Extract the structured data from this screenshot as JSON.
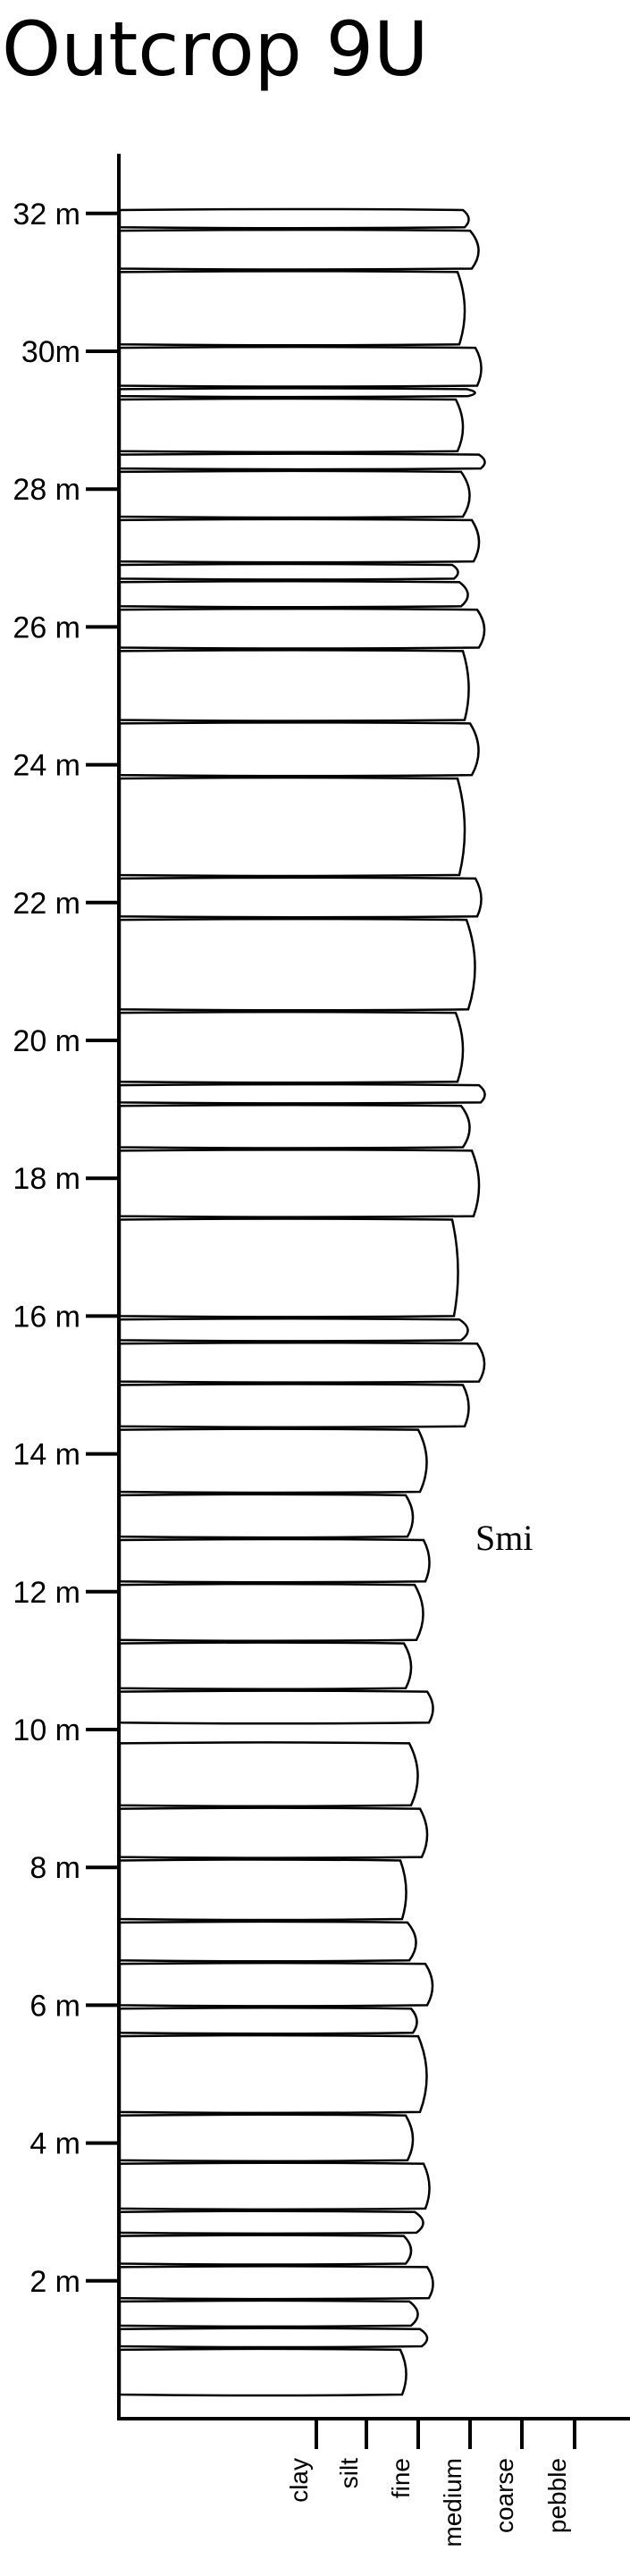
{
  "title": "Outcrop 9U",
  "facies_label": "Smi",
  "depth_labels": [
    "2 m",
    "4 m",
    "6 m",
    "8 m",
    "10 m",
    "12 m",
    "14 m",
    "16 m",
    "18 m",
    "20 m",
    "22 m",
    "24 m",
    "26 m",
    "28 m",
    "30m",
    "32 m"
  ],
  "depth_values": [
    2,
    4,
    6,
    8,
    10,
    12,
    14,
    16,
    18,
    20,
    22,
    24,
    26,
    28,
    30,
    32
  ],
  "grain_sizes": [
    "clay",
    "silt",
    "fine",
    "medium",
    "coarse",
    "pebble"
  ],
  "beds": [
    {
      "base_m": 0.35,
      "top_m": 1.0,
      "grain": "fine"
    },
    {
      "base_m": 1.05,
      "top_m": 1.3,
      "grain": "fine"
    },
    {
      "base_m": 1.35,
      "top_m": 1.7,
      "grain": "fine"
    },
    {
      "base_m": 1.75,
      "top_m": 2.2,
      "grain": "fine"
    },
    {
      "base_m": 2.25,
      "top_m": 2.65,
      "grain": "fine"
    },
    {
      "base_m": 2.7,
      "top_m": 3.0,
      "grain": "fine"
    },
    {
      "base_m": 3.05,
      "top_m": 3.7,
      "grain": "fine"
    },
    {
      "base_m": 3.75,
      "top_m": 4.4,
      "grain": "fine"
    },
    {
      "base_m": 4.45,
      "top_m": 5.55,
      "grain": "fine"
    },
    {
      "base_m": 5.6,
      "top_m": 5.95,
      "grain": "fine"
    },
    {
      "base_m": 6.0,
      "top_m": 6.6,
      "grain": "fine"
    },
    {
      "base_m": 6.65,
      "top_m": 7.2,
      "grain": "fine"
    },
    {
      "base_m": 7.25,
      "top_m": 8.1,
      "grain": "fine"
    },
    {
      "base_m": 8.15,
      "top_m": 8.85,
      "grain": "fine"
    },
    {
      "base_m": 8.9,
      "top_m": 9.8,
      "grain": "fine"
    },
    {
      "base_m": 10.1,
      "top_m": 10.55,
      "grain": "fine"
    },
    {
      "base_m": 10.6,
      "top_m": 11.25,
      "grain": "fine"
    },
    {
      "base_m": 11.3,
      "top_m": 12.1,
      "grain": "fine"
    },
    {
      "base_m": 12.15,
      "top_m": 12.75,
      "grain": "fine"
    },
    {
      "base_m": 12.8,
      "top_m": 13.4,
      "grain": "fine"
    },
    {
      "base_m": 13.45,
      "top_m": 14.35,
      "grain": "fine"
    },
    {
      "base_m": 14.4,
      "top_m": 15.0,
      "grain": "medium"
    },
    {
      "base_m": 15.05,
      "top_m": 15.6,
      "grain": "medium"
    },
    {
      "base_m": 15.65,
      "top_m": 15.95,
      "grain": "medium"
    },
    {
      "base_m": 16.0,
      "top_m": 17.4,
      "grain": "medium"
    },
    {
      "base_m": 17.45,
      "top_m": 18.4,
      "grain": "medium"
    },
    {
      "base_m": 18.45,
      "top_m": 19.05,
      "grain": "medium"
    },
    {
      "base_m": 19.1,
      "top_m": 19.35,
      "grain": "medium"
    },
    {
      "base_m": 19.4,
      "top_m": 20.4,
      "grain": "medium"
    },
    {
      "base_m": 20.45,
      "top_m": 21.75,
      "grain": "medium"
    },
    {
      "base_m": 21.8,
      "top_m": 22.35,
      "grain": "medium"
    },
    {
      "base_m": 22.4,
      "top_m": 23.8,
      "grain": "medium"
    },
    {
      "base_m": 23.85,
      "top_m": 24.6,
      "grain": "medium"
    },
    {
      "base_m": 24.65,
      "top_m": 25.65,
      "grain": "medium"
    },
    {
      "base_m": 25.7,
      "top_m": 26.25,
      "grain": "medium"
    },
    {
      "base_m": 26.3,
      "top_m": 26.65,
      "grain": "medium"
    },
    {
      "base_m": 26.7,
      "top_m": 26.9,
      "grain": "medium"
    },
    {
      "base_m": 26.95,
      "top_m": 27.55,
      "grain": "medium"
    },
    {
      "base_m": 27.6,
      "top_m": 28.25,
      "grain": "medium"
    },
    {
      "base_m": 28.3,
      "top_m": 28.5,
      "grain": "medium"
    },
    {
      "base_m": 28.55,
      "top_m": 29.3,
      "grain": "medium"
    },
    {
      "base_m": 29.35,
      "top_m": 29.45,
      "grain": "medium"
    },
    {
      "base_m": 29.5,
      "top_m": 30.05,
      "grain": "medium"
    },
    {
      "base_m": 30.1,
      "top_m": 31.15,
      "grain": "medium"
    },
    {
      "base_m": 31.2,
      "top_m": 31.75,
      "grain": "medium"
    },
    {
      "base_m": 31.8,
      "top_m": 32.05,
      "grain": "medium"
    }
  ]
}
